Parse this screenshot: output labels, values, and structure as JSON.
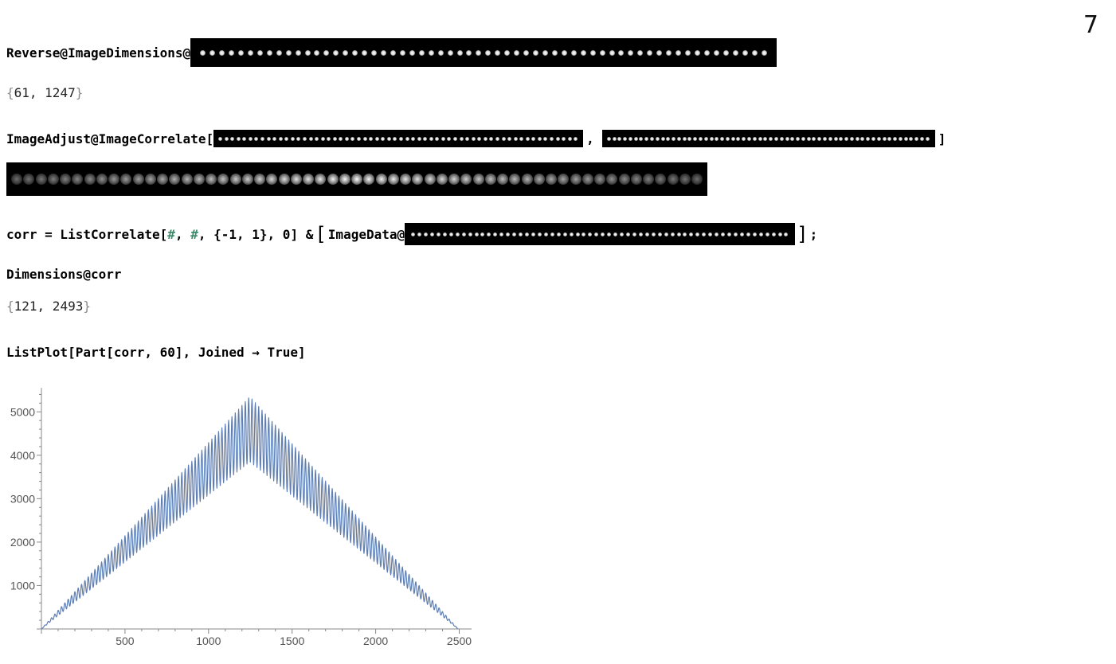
{
  "page": {
    "slide_number": "7"
  },
  "cells": {
    "c1": {
      "code": "Reverse@ImageDimensions@",
      "image_dots": 60,
      "output": [
        "{",
        "61, 1247",
        "}"
      ]
    },
    "c2": {
      "code": "ImageAdjust@ImageCorrelate[",
      "sep": ",",
      "close": "]",
      "image_dots_a": 60,
      "image_dots_b": 60
    },
    "c2_output": {
      "dots": 57
    },
    "c3": {
      "prefix": "corr = ListCorrelate[",
      "slot1": "#",
      "comma1": ", ",
      "slot2": "#",
      "rest": ", {-1, 1}, 0] &",
      "open": "[",
      "imgdata": "ImageData@",
      "close": "]",
      "semicolon": ";",
      "image_dots": 60
    },
    "c4": {
      "code": "Dimensions@corr",
      "output": [
        "{",
        "121, 2493",
        "}"
      ]
    },
    "c5": {
      "code": "ListPlot[Part[corr, 60], Joined → True]"
    }
  },
  "colors": {
    "series": "#5f7fb3",
    "slot": "#3d8a6a",
    "axis": "#888888"
  },
  "chart_data": {
    "type": "line",
    "series": [
      {
        "envelope_peaks": [
          [
            0,
            0
          ],
          [
            1247,
            5350
          ],
          [
            2493,
            0
          ]
        ],
        "envelope_troughs": [
          [
            0,
            0
          ],
          [
            1247,
            3850
          ],
          [
            2493,
            0
          ]
        ],
        "period": 20
      }
    ],
    "xticks": [
      500,
      1000,
      1500,
      2000,
      2500
    ],
    "yticks": [
      1000,
      2000,
      3000,
      4000,
      5000
    ],
    "xlim": [
      0,
      2550
    ],
    "ylim": [
      0,
      5500
    ],
    "grid": false
  }
}
